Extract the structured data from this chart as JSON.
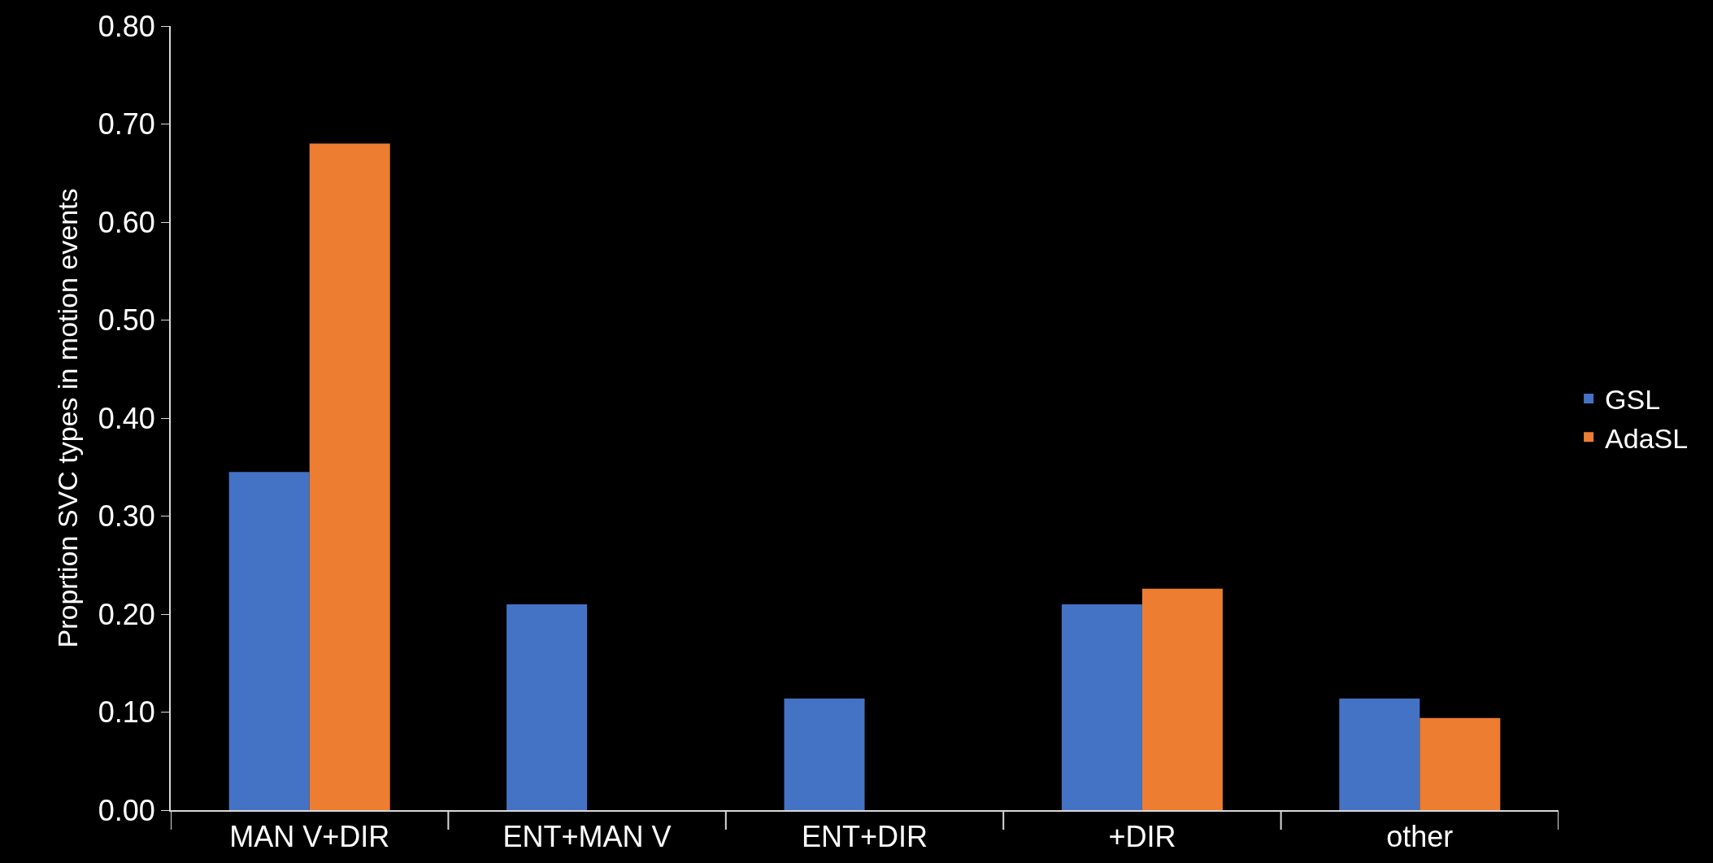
{
  "chart_data": {
    "type": "bar",
    "ylabel": "Proprtion SVC types in motion events",
    "categories": [
      "MAN V+DIR",
      "ENT+MAN V",
      "ENT+DIR",
      "+DIR",
      "other"
    ],
    "series": [
      {
        "name": "GSL",
        "color": "#4472c4",
        "values": [
          0.345,
          0.21,
          0.114,
          0.21,
          0.114
        ]
      },
      {
        "name": "AdaSL",
        "color": "#ed7d31",
        "values": [
          0.68,
          null,
          null,
          0.226,
          0.094
        ]
      }
    ],
    "ylim": [
      0,
      0.8
    ],
    "yticks": [
      {
        "value": 0,
        "label": "0.00"
      },
      {
        "value": 0.1,
        "label": "0.10"
      },
      {
        "value": 0.2,
        "label": "0.20"
      },
      {
        "value": 0.3,
        "label": "0.30"
      },
      {
        "value": 0.4,
        "label": "0.40"
      },
      {
        "value": 0.5,
        "label": "0.50"
      },
      {
        "value": 0.6,
        "label": "0.60"
      },
      {
        "value": 0.7,
        "label": "0.70"
      },
      {
        "value": 0.8,
        "label": "0.80"
      }
    ],
    "grid": false,
    "legend": "right"
  }
}
